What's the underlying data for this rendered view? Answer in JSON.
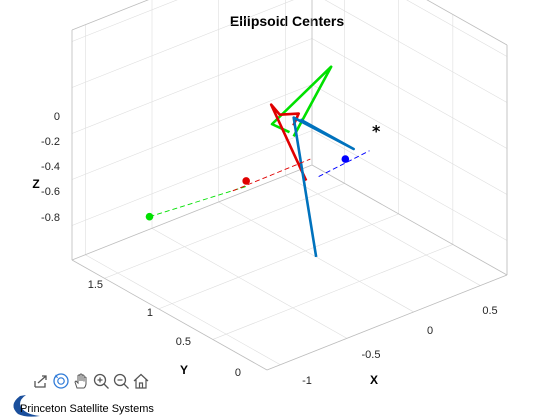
{
  "chart_data": {
    "type": "3d-line-scatter",
    "title": "Ellipsoid Centers",
    "xlabel": "X",
    "ylabel": "Y",
    "zlabel": "Z",
    "x_ticks": [
      "-1",
      "-0.5",
      "0",
      "0.5"
    ],
    "y_ticks": [
      "0",
      "0.5",
      "1",
      "1.5"
    ],
    "z_ticks": [
      "0",
      "-0.2",
      "-0.4",
      "-0.6",
      "-0.8"
    ],
    "grid": true,
    "series": [
      {
        "color": "#00e000",
        "style": "solid",
        "points": [
          [
            -0.9,
            0.0,
            0.02
          ],
          [
            0.6,
            1.5,
            -0.42
          ],
          [
            -0.9,
            0.2,
            0.02
          ],
          [
            -0.85,
            0.1,
            0.0
          ]
        ]
      },
      {
        "color": "#e00000",
        "style": "solid",
        "points": [
          [
            -0.78,
            0.15,
            0.0
          ],
          [
            -0.7,
            0.2,
            0.02
          ],
          [
            -0.72,
            0.35,
            -0.02
          ],
          [
            -0.5,
            0.7,
            -0.12
          ],
          [
            -0.4,
            0.5,
            -0.42
          ]
        ]
      },
      {
        "color": "#0072bd",
        "style": "solid",
        "points": [
          [
            -0.2,
            0.8,
            -0.28
          ],
          [
            0.2,
            0.8,
            -0.5
          ],
          [
            -0.25,
            0.8,
            -0.26
          ],
          [
            0.0,
            0.9,
            -0.95
          ]
        ]
      },
      {
        "color": "#00e000",
        "style": "dashed",
        "points": [
          [
            -0.6,
            1.7,
            -0.85
          ],
          [
            -0.1,
            1.4,
            -0.75
          ]
        ]
      },
      {
        "color": "#e00000",
        "style": "dashed",
        "points": [
          [
            -0.3,
            1.3,
            -0.7
          ],
          [
            0.2,
            1.2,
            -0.65
          ]
        ]
      },
      {
        "color": "#0000ff",
        "style": "dashed",
        "points": [
          [
            0.1,
            1.0,
            -0.65
          ],
          [
            0.4,
            0.9,
            -0.58
          ]
        ]
      }
    ],
    "markers": [
      {
        "color": "#00e000",
        "symbol": "dot",
        "point": [
          -0.6,
          1.7,
          -0.85
        ]
      },
      {
        "color": "#e00000",
        "symbol": "dot",
        "point": [
          -0.2,
          1.3,
          -0.68
        ]
      },
      {
        "color": "#0000ff",
        "symbol": "dot",
        "point": [
          0.3,
          1.0,
          -0.62
        ]
      },
      {
        "color": "#000000",
        "symbol": "asterisk",
        "point": [
          0.45,
          0.9,
          -0.5
        ]
      }
    ]
  },
  "toolbar": {
    "icons": [
      "export-icon",
      "rotate-3d-icon",
      "pan-icon",
      "zoom-in-icon",
      "zoom-out-icon",
      "home-icon"
    ]
  },
  "branding": {
    "text": "Princeton Satellite Systems",
    "accent": "#1a4f9c"
  }
}
